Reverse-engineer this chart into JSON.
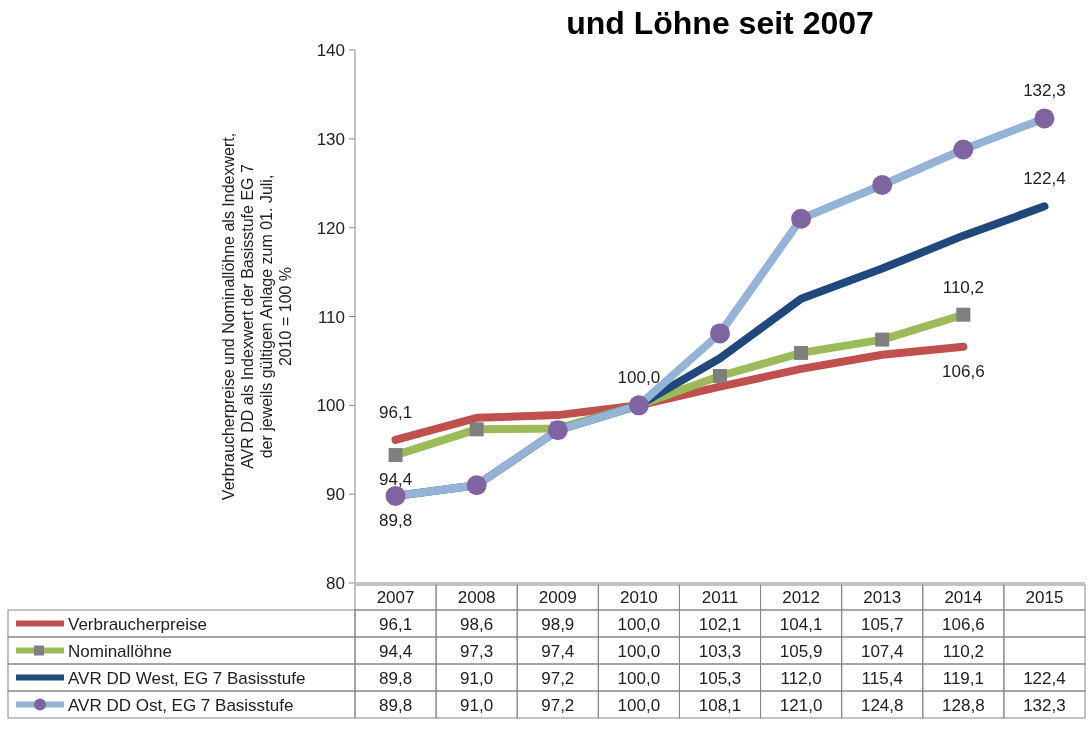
{
  "chart_data": {
    "type": "line",
    "title": "und Löhne seit 2007",
    "ylabel": "Verbraucherpreise und Nominallöhne  als Indexwert,\nAVR DD als Indexwert  der Basisstufe EG 7\nder jeweils gültigen Anlage zum 01. Juli,\n2010 = 100 %",
    "categories": [
      "2007",
      "2008",
      "2009",
      "2010",
      "2011",
      "2012",
      "2013",
      "2014",
      "2015"
    ],
    "series": [
      {
        "name": "Verbraucherpreise",
        "color": "#c0504d",
        "marker": "none",
        "values": [
          96.1,
          98.6,
          98.9,
          100.0,
          102.1,
          104.1,
          105.7,
          106.6,
          null
        ],
        "value_labels": [
          "96,1",
          "98,6",
          "98,9",
          "100,0",
          "102,1",
          "104,1",
          "105,7",
          "106,6",
          null
        ]
      },
      {
        "name": "Nominallöhne",
        "color": "#9bbb59",
        "marker": "square",
        "values": [
          94.4,
          97.3,
          97.4,
          100.0,
          103.3,
          105.9,
          107.4,
          110.2,
          null
        ],
        "value_labels": [
          "94,4",
          "97,3",
          "97,4",
          "100,0",
          "103,3",
          "105,9",
          "107,4",
          "110,2",
          null
        ]
      },
      {
        "name": "AVR DD West, EG 7 Basisstufe",
        "color": "#1f497d",
        "marker": "none",
        "values": [
          89.8,
          91.0,
          97.2,
          100.0,
          105.3,
          112.0,
          115.4,
          119.1,
          122.4
        ],
        "value_labels": [
          "89,8",
          "91,0",
          "97,2",
          "100,0",
          "105,3",
          "112,0",
          "115,4",
          "119,1",
          "122,4"
        ]
      },
      {
        "name": "AVR DD Ost, EG 7 Basisstufe",
        "color": "#95b3d7",
        "marker": "circle",
        "values": [
          89.8,
          91.0,
          97.2,
          100.0,
          108.1,
          121.0,
          124.8,
          128.8,
          132.3
        ],
        "value_labels": [
          "89,8",
          "91,0",
          "97,2",
          "100,0",
          "108,1",
          "121,0",
          "124,8",
          "128,8",
          "132,3"
        ]
      }
    ],
    "annotations": [
      {
        "text": "96,1",
        "x": "2007",
        "y": 96.1
      },
      {
        "text": "94,4",
        "x": "2007",
        "y": 94.4
      },
      {
        "text": "89,8",
        "x": "2007",
        "y": 89.8
      },
      {
        "text": "100,0",
        "x": "2010",
        "y": 100.0
      },
      {
        "text": "110,2",
        "x": "2014",
        "y": 110.2
      },
      {
        "text": "106,6",
        "x": "2014",
        "y": 106.6
      },
      {
        "text": "122,4",
        "x": "2015",
        "y": 122.4
      },
      {
        "text": "132,3",
        "x": "2015",
        "y": 132.3
      }
    ],
    "ylim": [
      80,
      140
    ],
    "yticks": [
      80,
      90,
      100,
      110,
      120,
      130,
      140
    ],
    "grid": false,
    "legend": "bottom"
  }
}
